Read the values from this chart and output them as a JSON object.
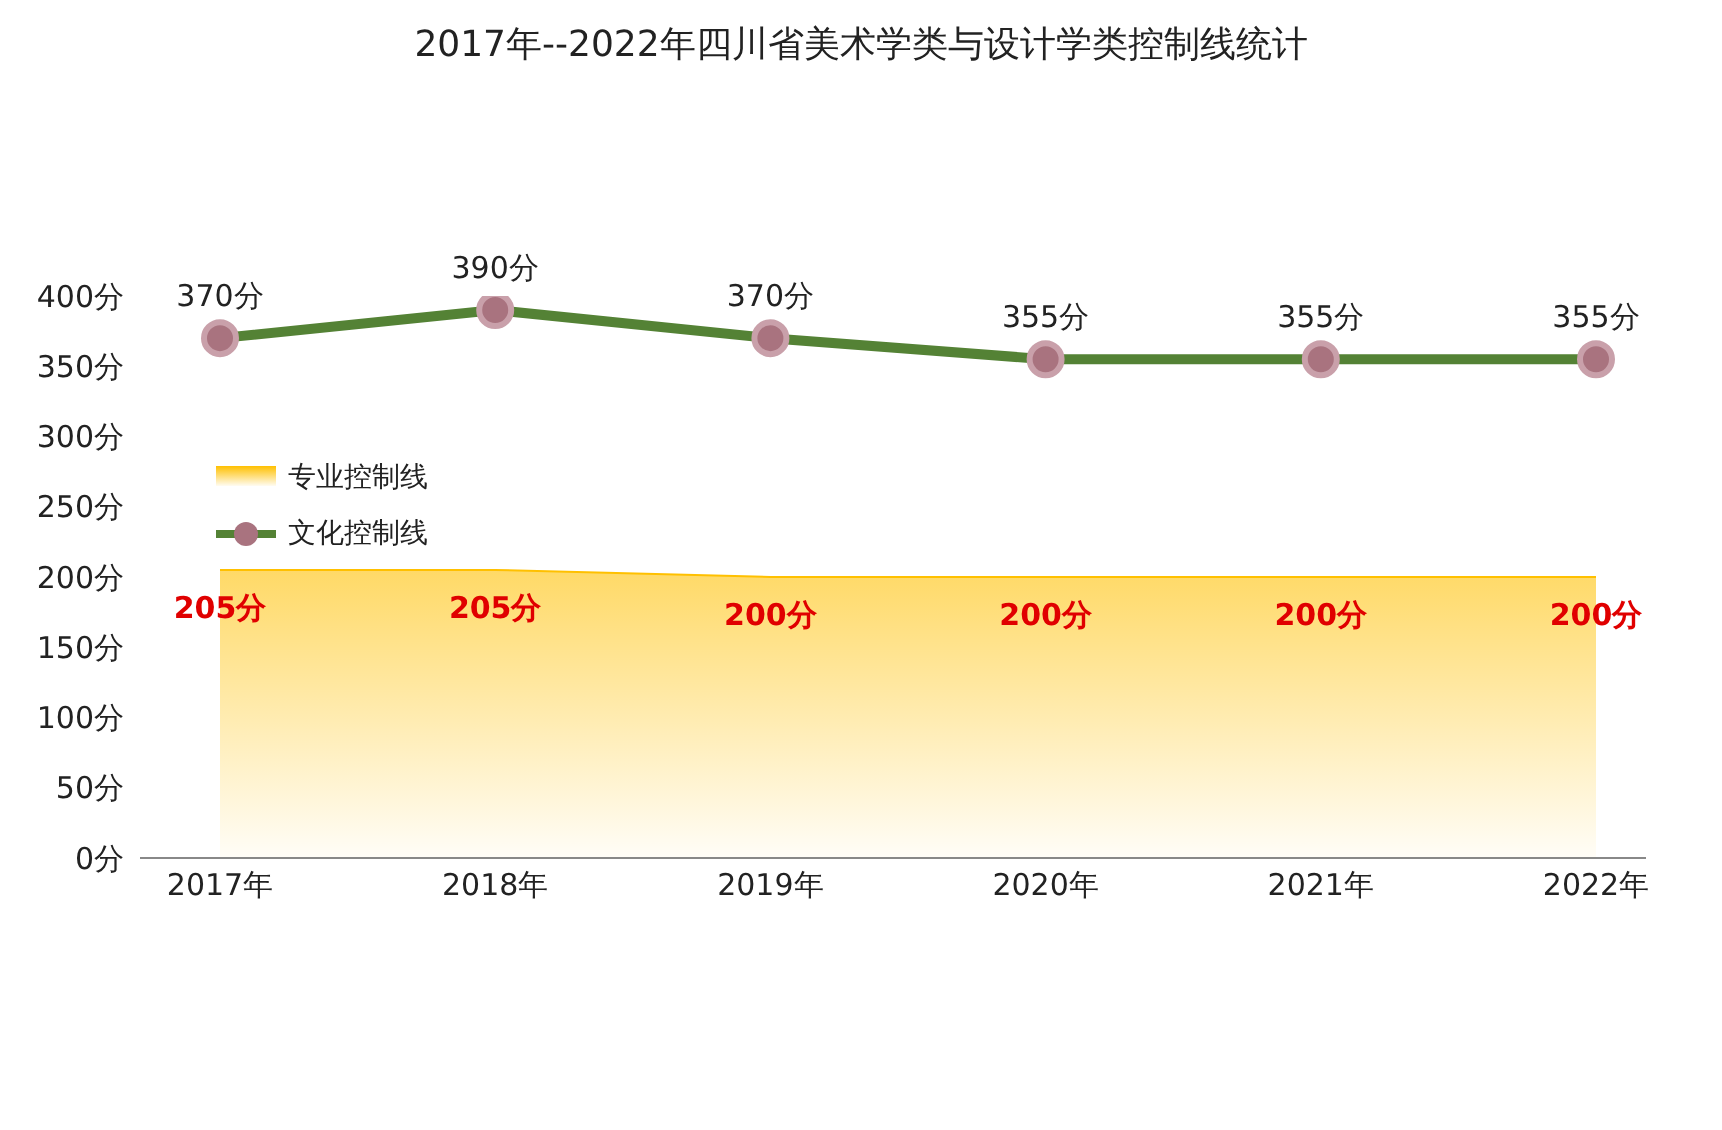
{
  "chart_data": {
    "type": "area",
    "title": "2017年--2022年四川省美术学类与设计学类控制线统计",
    "categories": [
      "2017年",
      "2018年",
      "2019年",
      "2020年",
      "2021年",
      "2022年"
    ],
    "series": [
      {
        "name": "专业控制线",
        "color": "#ffc000",
        "values": [
          205,
          205,
          200,
          200,
          200,
          200
        ],
        "value_labels": [
          "205分",
          "205分",
          "200分",
          "200分",
          "200分",
          "200分"
        ]
      },
      {
        "name": "文化控制线",
        "type": "line",
        "marker": "circle",
        "color": "#548235",
        "values": [
          370,
          390,
          370,
          355,
          355,
          355
        ],
        "value_labels": [
          "370分",
          "390分",
          "370分",
          "355分",
          "355分",
          "355分"
        ]
      }
    ],
    "ylim": [
      0,
      400
    ],
    "yticks": [
      {
        "value": 0,
        "label": "0分"
      },
      {
        "value": 50,
        "label": "50分"
      },
      {
        "value": 100,
        "label": "100分"
      },
      {
        "value": 150,
        "label": "150分"
      },
      {
        "value": 200,
        "label": "200分"
      },
      {
        "value": 250,
        "label": "250分"
      },
      {
        "value": 300,
        "label": "300分"
      },
      {
        "value": 350,
        "label": "350分"
      },
      {
        "value": 400,
        "label": "400分"
      }
    ],
    "grid": false,
    "legend": "left"
  }
}
